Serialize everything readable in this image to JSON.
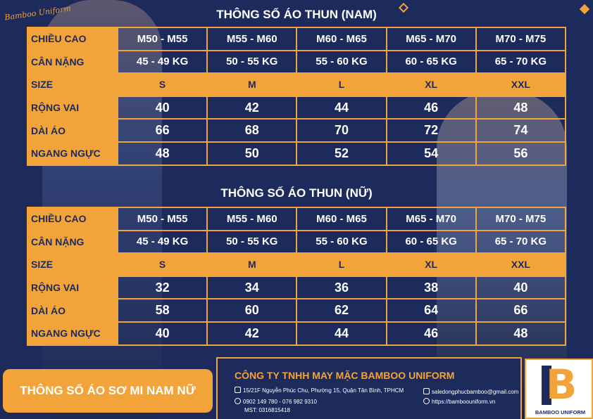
{
  "brand_script": "Bamboo Uniform",
  "tables": [
    {
      "title": "THÔNG SỐ ÁO THUN (NAM)",
      "rows": [
        {
          "label": "CHIỀU CAO",
          "values": [
            "M50 - M55",
            "M55 - M60",
            "M60 - M65",
            "M65 - M70",
            "M70 - M75"
          ]
        },
        {
          "label": "CÂN NẶNG",
          "values": [
            "45 - 49 KG",
            "50 - 55 KG",
            "55 - 60 KG",
            "60 - 65 KG",
            "65 - 70 KG"
          ]
        },
        {
          "label": "SIZE",
          "values": [
            "S",
            "M",
            "L",
            "XL",
            "XXL"
          ]
        },
        {
          "label": "RỘNG VAI",
          "values": [
            "40",
            "42",
            "44",
            "46",
            "48"
          ]
        },
        {
          "label": "DÀI ÁO",
          "values": [
            "66",
            "68",
            "70",
            "72",
            "74"
          ]
        },
        {
          "label": "NGANG NGỰC",
          "values": [
            "48",
            "50",
            "52",
            "54",
            "56"
          ]
        }
      ]
    },
    {
      "title": "THÔNG SỐ ÁO THUN (NỮ)",
      "rows": [
        {
          "label": "CHIỀU CAO",
          "values": [
            "M50 - M55",
            "M55 - M60",
            "M60 - M65",
            "M65 - M70",
            "M70 - M75"
          ]
        },
        {
          "label": "CÂN NẶNG",
          "values": [
            "45 - 49 KG",
            "50 - 55 KG",
            "55 - 60 KG",
            "60 - 65 KG",
            "65 - 70 KG"
          ]
        },
        {
          "label": "SIZE",
          "values": [
            "S",
            "M",
            "L",
            "XL",
            "XXL"
          ]
        },
        {
          "label": "RỘNG VAI",
          "values": [
            "32",
            "34",
            "36",
            "38",
            "40"
          ]
        },
        {
          "label": "DÀI ÁO",
          "values": [
            "58",
            "60",
            "62",
            "64",
            "66"
          ]
        },
        {
          "label": "NGANG NGỰC",
          "values": [
            "40",
            "42",
            "44",
            "46",
            "48"
          ]
        }
      ]
    }
  ],
  "footer": {
    "badge": "THÔNG SỐ ÁO SƠ MI NAM NỮ",
    "company": "CÔNG TY TNHH MAY MẶC BAMBOO UNIFORM",
    "address": "15/21F Nguyễn Phúc Chu, Phường 15, Quận Tân Bình, TPHCM",
    "phone": "0902 149 780 - 076 982 9310",
    "tax": "MST: 0316815418",
    "email": "saledongphucbamboo@gmail.com",
    "website": "https://bamboouniform.vn",
    "logo_text": "BAMBOO UNIFORM"
  },
  "colors": {
    "background": "#1d2b5c",
    "accent": "#f2a33a",
    "text": "#ffffff"
  },
  "icons": [
    "location-icon",
    "phone-icon",
    "email-icon",
    "globe-icon"
  ]
}
